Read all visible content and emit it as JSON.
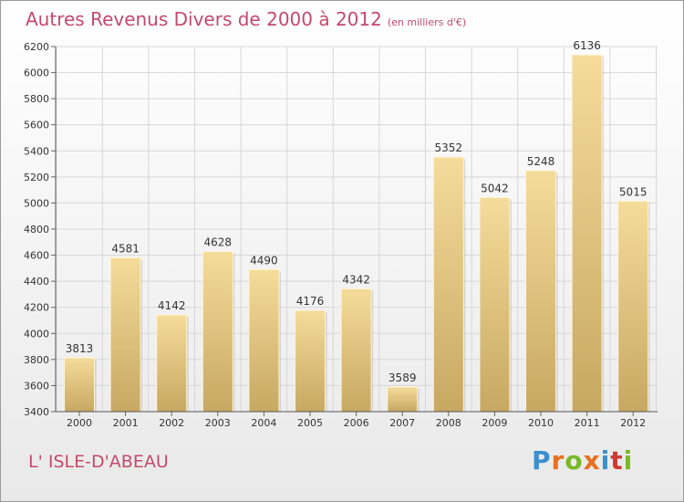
{
  "title": "Autres Revenus Divers de 2000 à 2012",
  "subtitle": "(en milliers d'€)",
  "commune": "L' ISLE-D'ABEAU",
  "brand": {
    "letters": [
      "P",
      "r",
      "o",
      "x",
      "i",
      "t",
      "i"
    ],
    "colors": [
      "#3a8fd0",
      "#e8701e",
      "#7ab828",
      "#e8701e",
      "#3a8fd0",
      "#d0392f",
      "#7ab828"
    ]
  },
  "colors": {
    "title": "#c4496e",
    "bar_light": "#f5dc9a",
    "bar_dark": "#c7a863",
    "grid": "#d7d7d7"
  },
  "chart_data": {
    "type": "bar",
    "title": "Autres Revenus Divers de 2000 à 2012",
    "subtitle": "(en milliers d'€)",
    "xlabel": "",
    "ylabel": "",
    "categories": [
      "2000",
      "2001",
      "2002",
      "2003",
      "2004",
      "2005",
      "2006",
      "2007",
      "2008",
      "2009",
      "2010",
      "2011",
      "2012"
    ],
    "values": [
      3813,
      4581,
      4142,
      4628,
      4490,
      4176,
      4342,
      3589,
      5352,
      5042,
      5248,
      6136,
      5015
    ],
    "ylim": [
      3400,
      6200
    ],
    "yticks": [
      3400,
      3600,
      3800,
      4000,
      4200,
      4400,
      4600,
      4800,
      5000,
      5200,
      5400,
      5600,
      5800,
      6000,
      6200
    ],
    "grid": true,
    "legend": "none"
  }
}
